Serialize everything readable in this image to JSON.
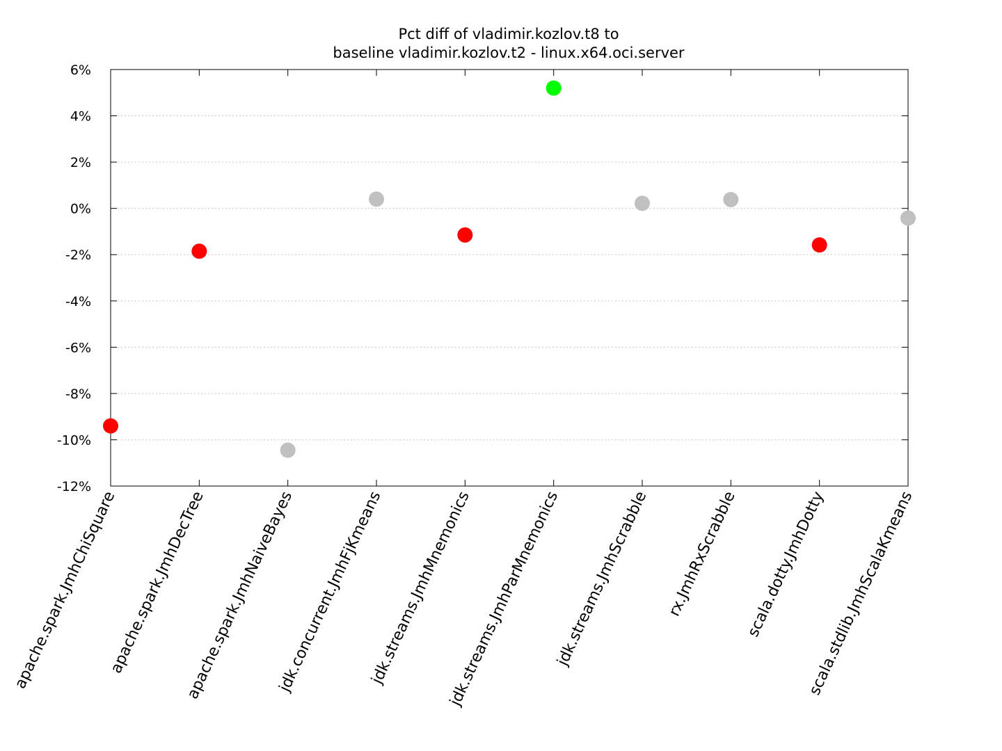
{
  "chart_data": {
    "type": "scatter",
    "title_lines": [
      "Pct diff of vladimir.kozlov.t8 to",
      "baseline vladimir.kozlov.t2 - linux.x64.oci.server"
    ],
    "categories": [
      "apache.spark.JmhChiSquare",
      "apache.spark.JmhDecTree",
      "apache.spark.JmhNaiveBayes",
      "jdk.concurrent.JmhFjKmeans",
      "jdk.streams.JmhMnemonics",
      "jdk.streams.JmhParMnemonics",
      "jdk.streams.JmhScrabble",
      "rx.JmhRxScrabble",
      "scala.dotty.JmhDotty",
      "scala.stdlib.JmhScalaKmeans"
    ],
    "values": [
      -9.4,
      -1.85,
      -10.45,
      0.4,
      -1.15,
      5.2,
      0.22,
      0.38,
      -1.58,
      -0.42
    ],
    "point_colors": [
      "#ff0000",
      "#ff0000",
      "#c0c0c0",
      "#c0c0c0",
      "#ff0000",
      "#00ff00",
      "#c0c0c0",
      "#c0c0c0",
      "#ff0000",
      "#c0c0c0"
    ],
    "y_ticks": [
      {
        "value": 6,
        "label": "6%"
      },
      {
        "value": 4,
        "label": "4%"
      },
      {
        "value": 2,
        "label": "2%"
      },
      {
        "value": 0,
        "label": "0%"
      },
      {
        "value": -2,
        "label": "-2%"
      },
      {
        "value": -4,
        "label": "-4%"
      },
      {
        "value": -6,
        "label": "-6%"
      },
      {
        "value": -8,
        "label": "-8%"
      },
      {
        "value": -10,
        "label": "-10%"
      },
      {
        "value": -12,
        "label": "-12%"
      }
    ],
    "ylim": [
      -12,
      6
    ],
    "grid": true,
    "xlabel": "",
    "ylabel": ""
  }
}
